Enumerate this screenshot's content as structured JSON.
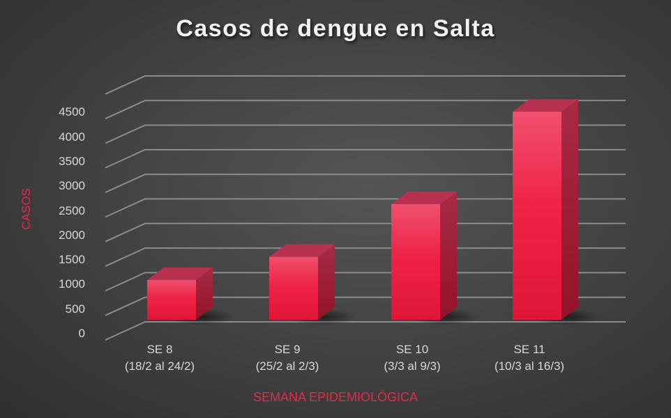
{
  "chart_data": {
    "type": "bar",
    "style": "3d-column",
    "title": "Casos de dengue en Salta",
    "xlabel": "SEMANA EPIDEMIOLÓGICA",
    "ylabel": "CASOS",
    "categories": [
      "SE 8 (18/2 al 24/2)",
      "SE 9 (25/2 al 2/3)",
      "SE 10 (3/3 al 9/3)",
      "SE 11 (10/3 al 16/3)"
    ],
    "category_lines": [
      [
        "SE 8",
        "(18/2 al 24/2)"
      ],
      [
        "SE 9",
        "(25/2 al 2/3)"
      ],
      [
        "SE 10",
        "(3/3 al 9/3)"
      ],
      [
        "SE 11",
        "(10/3 al 16/3)"
      ]
    ],
    "series": [
      {
        "name": "Casos",
        "values": [
          810,
          1280,
          2350,
          4230
        ],
        "color": "#e8203f"
      }
    ],
    "yticks": [
      "0",
      "500",
      "1000",
      "1500",
      "2000",
      "2500",
      "3000",
      "3500",
      "4000",
      "4500"
    ],
    "ylim": [
      0,
      5000
    ],
    "grid": true,
    "legend": "none"
  },
  "colors": {
    "bar_front": "#e8203f",
    "bar_top": "#b83150",
    "bar_side": "#9e1a33",
    "axis_title": "#e8294a",
    "text": "#d9d9d9",
    "gridline": "#8c8c8c"
  }
}
